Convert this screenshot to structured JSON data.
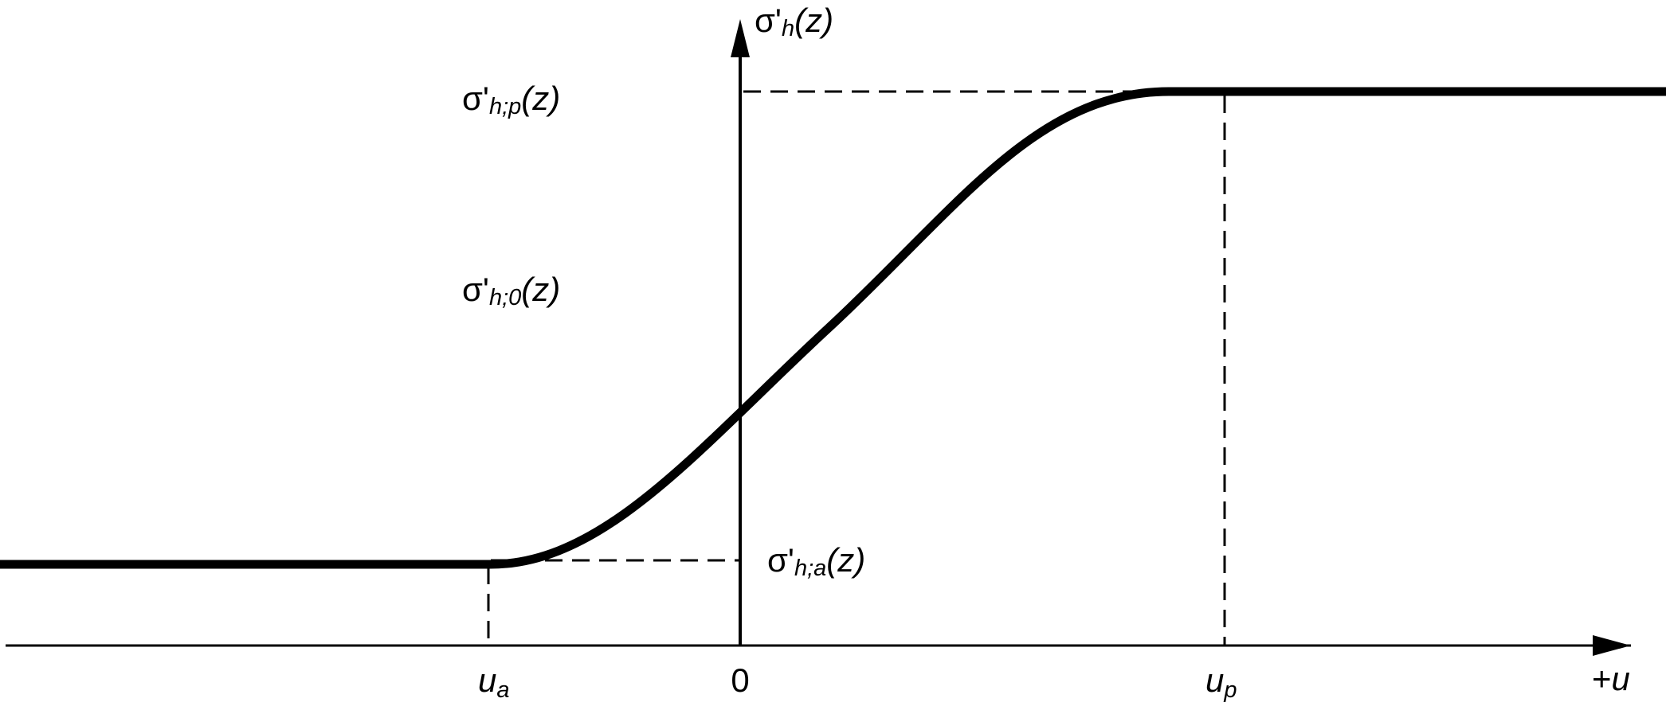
{
  "axis_labels": {
    "y_axis": {
      "symbol": "σ'",
      "subscript": "h",
      "argument": "(z)"
    },
    "x_axis": {
      "sign": "+",
      "symbol": "u"
    }
  },
  "stress_labels": [
    {
      "symbol": "σ'",
      "subscript": "h;p",
      "argument": "(z)"
    },
    {
      "symbol": "σ'",
      "subscript": "h;0",
      "argument": "(z)"
    },
    {
      "symbol": "σ'",
      "subscript": "h;a",
      "argument": "(z)"
    }
  ],
  "displacement_labels": [
    {
      "symbol": "u",
      "subscript": "a"
    },
    {
      "symbol": "0"
    },
    {
      "symbol": "u",
      "subscript": "p"
    }
  ]
}
